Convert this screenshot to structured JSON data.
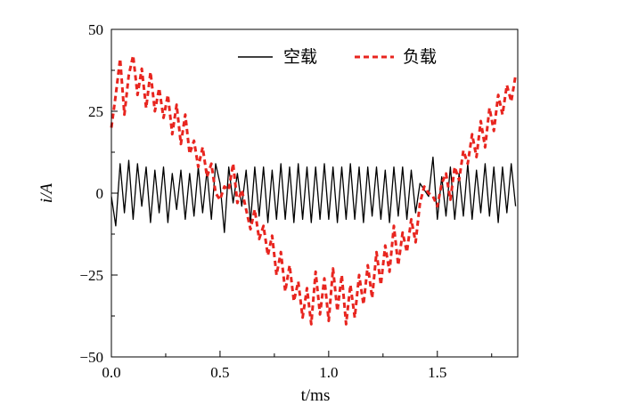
{
  "chart_data": {
    "type": "line",
    "xlabel": "t/ms",
    "ylabel": "i/A",
    "xlim": [
      0.0,
      1.87
    ],
    "ylim": [
      -50,
      50
    ],
    "x_ticks": [
      0.0,
      0.5,
      1.0,
      1.5
    ],
    "x_tick_labels": [
      "0.0",
      "0.5",
      "1.0",
      "1.5"
    ],
    "y_ticks": [
      50,
      25,
      0,
      -25,
      -50
    ],
    "y_tick_labels": [
      "50",
      "25",
      "0",
      "−25",
      "−50"
    ],
    "legend_position": "top-right",
    "grid": false,
    "series": [
      {
        "name": "空载",
        "color": "#000000",
        "style": "solid",
        "x": [
          0.0,
          0.02,
          0.04,
          0.06,
          0.08,
          0.1,
          0.12,
          0.14,
          0.16,
          0.18,
          0.2,
          0.22,
          0.24,
          0.26,
          0.28,
          0.3,
          0.32,
          0.34,
          0.36,
          0.38,
          0.4,
          0.42,
          0.44,
          0.46,
          0.48,
          0.5,
          0.52,
          0.54,
          0.56,
          0.58,
          0.6,
          0.62,
          0.64,
          0.66,
          0.68,
          0.7,
          0.72,
          0.74,
          0.76,
          0.78,
          0.8,
          0.82,
          0.84,
          0.86,
          0.88,
          0.9,
          0.92,
          0.94,
          0.96,
          0.98,
          1.0,
          1.02,
          1.04,
          1.06,
          1.08,
          1.1,
          1.12,
          1.14,
          1.16,
          1.18,
          1.2,
          1.22,
          1.24,
          1.26,
          1.28,
          1.3,
          1.32,
          1.34,
          1.36,
          1.38,
          1.4,
          1.42,
          1.44,
          1.46,
          1.48,
          1.5,
          1.52,
          1.54,
          1.56,
          1.58,
          1.6,
          1.62,
          1.64,
          1.66,
          1.68,
          1.7,
          1.72,
          1.74,
          1.76,
          1.78,
          1.8,
          1.82,
          1.84,
          1.86
        ],
        "values": [
          -1,
          -10,
          9,
          -6,
          10,
          -8,
          9,
          -4,
          8,
          -9,
          7,
          -6,
          8,
          -9,
          6,
          -5,
          7,
          -8,
          6,
          -7,
          8,
          -6,
          7,
          -8,
          9,
          3,
          -12,
          8,
          -3,
          6,
          -4,
          7,
          -9,
          8,
          -7,
          8,
          -9,
          7,
          -8,
          9,
          -8,
          8,
          -9,
          9,
          -8,
          8,
          -9,
          8,
          -8,
          9,
          -8,
          8,
          -9,
          8,
          -8,
          9,
          -8,
          8,
          -9,
          8,
          -7,
          8,
          -8,
          7,
          -9,
          8,
          -7,
          8,
          -8,
          7,
          -6,
          3,
          1,
          -1,
          11,
          -8,
          5,
          -7,
          8,
          -8,
          6,
          -7,
          9,
          -8,
          7,
          -6,
          9,
          -7,
          8,
          -9,
          8,
          -6,
          9,
          -4
        ],
        "legend_label": "空载"
      },
      {
        "name": "负载",
        "color": "#e8251f",
        "style": "dashed",
        "x": [
          0.0,
          0.02,
          0.04,
          0.06,
          0.08,
          0.1,
          0.12,
          0.14,
          0.16,
          0.18,
          0.2,
          0.22,
          0.24,
          0.26,
          0.28,
          0.3,
          0.32,
          0.34,
          0.36,
          0.38,
          0.4,
          0.42,
          0.44,
          0.46,
          0.48,
          0.5,
          0.52,
          0.54,
          0.56,
          0.58,
          0.6,
          0.62,
          0.64,
          0.66,
          0.68,
          0.7,
          0.72,
          0.74,
          0.76,
          0.78,
          0.8,
          0.82,
          0.84,
          0.86,
          0.88,
          0.9,
          0.92,
          0.94,
          0.96,
          0.98,
          1.0,
          1.02,
          1.04,
          1.06,
          1.08,
          1.1,
          1.12,
          1.14,
          1.16,
          1.18,
          1.2,
          1.22,
          1.24,
          1.26,
          1.28,
          1.3,
          1.32,
          1.34,
          1.36,
          1.38,
          1.4,
          1.42,
          1.44,
          1.46,
          1.48,
          1.5,
          1.52,
          1.54,
          1.56,
          1.58,
          1.6,
          1.62,
          1.64,
          1.66,
          1.68,
          1.7,
          1.72,
          1.74,
          1.76,
          1.78,
          1.8,
          1.82,
          1.84,
          1.86
        ],
        "values": [
          20,
          30,
          41,
          24,
          36,
          42,
          30,
          38,
          26,
          37,
          25,
          32,
          23,
          30,
          18,
          27,
          15,
          24,
          12,
          16,
          8,
          14,
          5,
          9,
          0,
          -2,
          2,
          1,
          9,
          -3,
          1,
          -5,
          -11,
          -5,
          -14,
          -10,
          -19,
          -13,
          -25,
          -18,
          -30,
          -22,
          -33,
          -27,
          -38,
          -29,
          -40,
          -24,
          -37,
          -26,
          -39,
          -23,
          -36,
          -25,
          -40,
          -28,
          -38,
          -25,
          -34,
          -22,
          -32,
          -18,
          -28,
          -16,
          -24,
          -10,
          -22,
          -12,
          -18,
          -8,
          -15,
          -3,
          2,
          0,
          -1,
          -4,
          3,
          6,
          -2,
          8,
          4,
          13,
          9,
          18,
          11,
          22,
          14,
          26,
          19,
          30,
          24,
          33,
          28,
          36
        ],
        "legend_label": "负载"
      }
    ]
  }
}
